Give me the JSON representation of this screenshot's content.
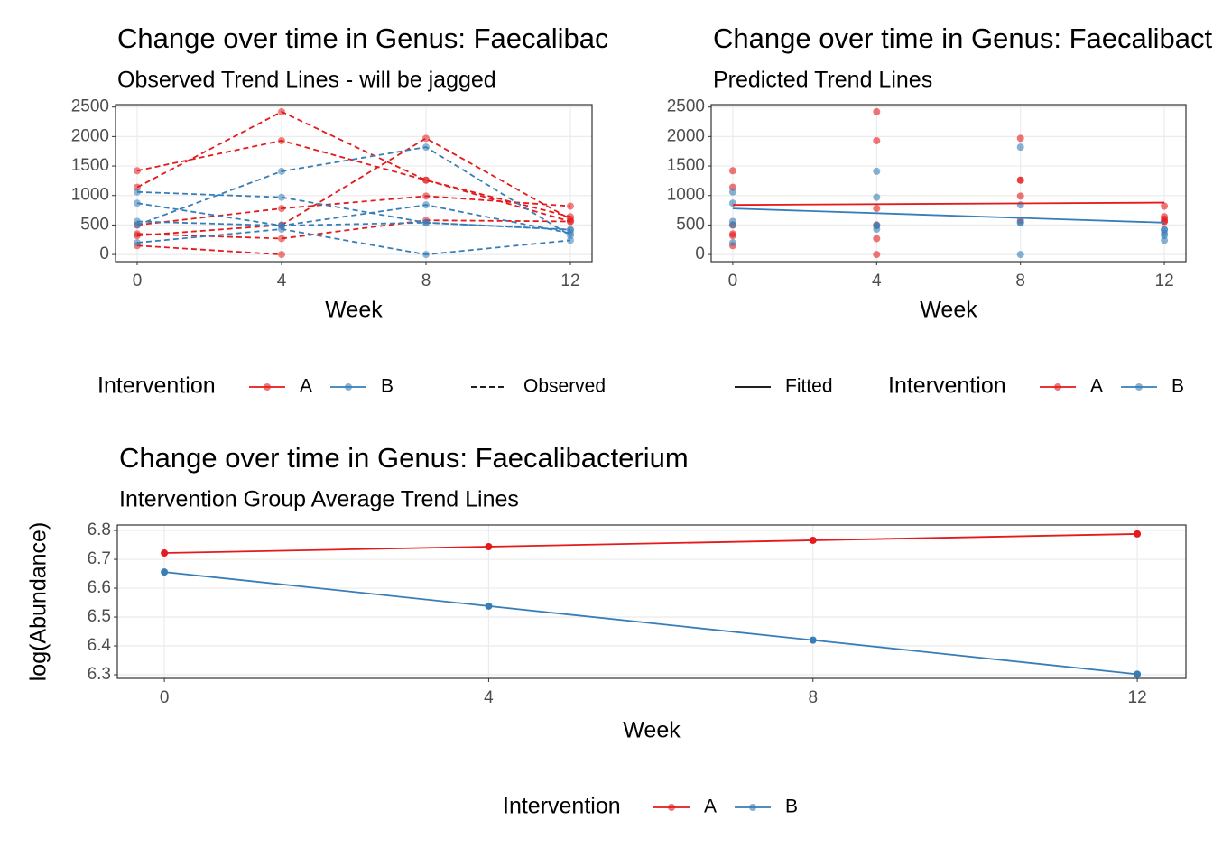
{
  "chart_data": [
    {
      "type": "line",
      "title": "Change over time in Genus: Faecalibacterium",
      "subtitle": "Observed Trend Lines - will be jagged",
      "x_label": "Week",
      "x": [
        0,
        4,
        8,
        12
      ],
      "xlim": [
        -0.6,
        12.6
      ],
      "xticks": [
        0,
        4,
        8,
        12
      ],
      "ylim": [
        -121,
        2541
      ],
      "yticks": [
        0,
        500,
        1000,
        1500,
        2000,
        2500
      ],
      "grid": true,
      "dashed": true,
      "points": true,
      "legend_title": "Intervention",
      "groups": [
        {
          "name": "A",
          "color": "#e41a1c"
        },
        {
          "name": "B",
          "color": "#377eb8"
        }
      ],
      "linetype_label": "Observed",
      "series": [
        {
          "color": "#e41a1c",
          "values": [
            1140,
            2420,
            1260,
            560
          ]
        },
        {
          "color": "#e41a1c",
          "values": [
            1420,
            1930,
            1260,
            640
          ]
        },
        {
          "color": "#e41a1c",
          "values": [
            320,
            500,
            1970,
            600
          ]
        },
        {
          "color": "#e41a1c",
          "values": [
            150,
            0,
            null,
            null
          ]
        },
        {
          "color": "#e41a1c",
          "values": [
            500,
            780,
            990,
            820
          ]
        },
        {
          "color": "#e41a1c",
          "values": [
            350,
            270,
            580,
            560
          ]
        },
        {
          "color": "#377eb8",
          "values": [
            1060,
            970,
            540,
            420
          ]
        },
        {
          "color": "#377eb8",
          "values": [
            500,
            1410,
            1820,
            320
          ]
        },
        {
          "color": "#377eb8",
          "values": [
            870,
            490,
            840,
            360
          ]
        },
        {
          "color": "#377eb8",
          "values": [
            200,
            430,
            0,
            240
          ]
        },
        {
          "color": "#377eb8",
          "values": [
            560,
            490,
            540,
            420
          ]
        }
      ]
    },
    {
      "type": "scatter",
      "title": "Change over time in Genus: Faecalibacterium",
      "subtitle": "Predicted Trend Lines",
      "x_label": "Week",
      "xlim": [
        -0.6,
        12.6
      ],
      "xticks": [
        0,
        4,
        8,
        12
      ],
      "ylim": [
        -121,
        2541
      ],
      "yticks": [
        0,
        500,
        1000,
        1500,
        2000,
        2500
      ],
      "grid": true,
      "legend_title": "Intervention",
      "fit_label": "Fitted",
      "series": [
        {
          "name": "A",
          "color": "#e41a1c",
          "x": [
            0,
            4,
            8,
            12,
            0,
            4,
            8,
            12,
            0,
            4,
            8,
            12,
            0,
            4,
            0,
            4,
            8,
            12,
            0,
            4,
            8,
            12
          ],
          "values": [
            1140,
            2420,
            1260,
            560,
            1420,
            1930,
            1260,
            640,
            320,
            500,
            1970,
            600,
            150,
            0,
            500,
            780,
            990,
            820,
            350,
            270,
            580,
            560
          ]
        },
        {
          "name": "B",
          "color": "#377eb8",
          "x": [
            0,
            4,
            8,
            12,
            0,
            4,
            8,
            12,
            0,
            4,
            8,
            12,
            0,
            4,
            8,
            12,
            0,
            4,
            8,
            12
          ],
          "values": [
            1060,
            970,
            540,
            420,
            500,
            1410,
            1820,
            320,
            870,
            490,
            840,
            360,
            200,
            430,
            0,
            240,
            560,
            490,
            540,
            420
          ]
        }
      ],
      "fitted": [
        {
          "color": "#e41a1c",
          "x": [
            0,
            12
          ],
          "values": [
            840,
            880
          ]
        },
        {
          "color": "#377eb8",
          "x": [
            0,
            12
          ],
          "values": [
            780,
            540
          ]
        }
      ]
    },
    {
      "type": "line",
      "title": "Change over time in Genus: Faecalibacterium",
      "subtitle": "Intervention Group Average Trend Lines",
      "x_label": "Week",
      "y_label": "log(Abundance)",
      "x": [
        0,
        4,
        8,
        12
      ],
      "xlim": [
        -0.58,
        12.6
      ],
      "xticks": [
        0,
        4,
        8,
        12
      ],
      "ylim": [
        6.2875,
        6.819
      ],
      "yticks": [
        6.3,
        6.4,
        6.5,
        6.6,
        6.7,
        6.8
      ],
      "grid": true,
      "dashed": false,
      "points": true,
      "legend_title": "Intervention",
      "series": [
        {
          "name": "A",
          "color": "#e41a1c",
          "values": [
            6.722,
            6.744,
            6.766,
            6.788
          ]
        },
        {
          "name": "B",
          "color": "#377eb8",
          "values": [
            6.656,
            6.538,
            6.42,
            6.302
          ]
        }
      ]
    }
  ]
}
